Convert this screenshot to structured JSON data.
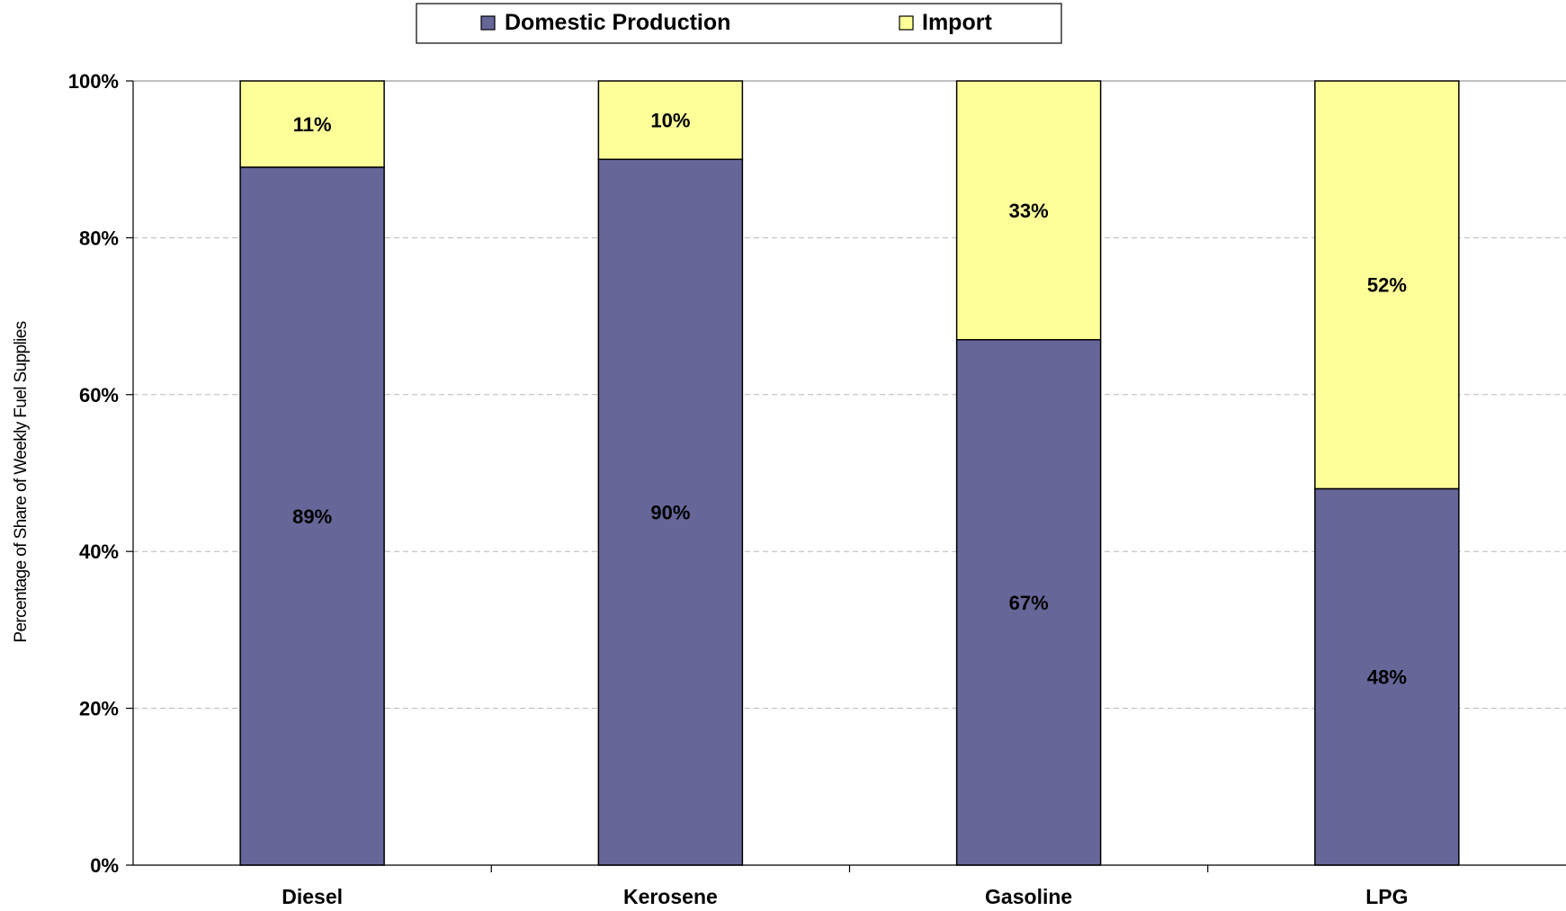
{
  "chart_data": {
    "type": "bar",
    "stacked": true,
    "percent_stacked": true,
    "title": "",
    "xlabel": "",
    "ylabel": "Percentage of Share of Weekly Fuel Supplies",
    "categories": [
      "Diesel",
      "Kerosene",
      "Gasoline",
      "LPG"
    ],
    "series": [
      {
        "name": "Domestic Production",
        "values": [
          89,
          90,
          67,
          48
        ],
        "labels": [
          "89%",
          "90%",
          "67%",
          "48%"
        ],
        "color": "#666699"
      },
      {
        "name": "Import",
        "values": [
          11,
          10,
          33,
          52
        ],
        "labels": [
          "11%",
          "10%",
          "33%",
          "52%"
        ],
        "color": "#FFFF99"
      }
    ],
    "ylim": [
      0,
      100
    ],
    "y_ticks": [
      "0%",
      "20%",
      "40%",
      "60%",
      "80%",
      "100%"
    ],
    "grid": true,
    "legend_position": "top"
  }
}
